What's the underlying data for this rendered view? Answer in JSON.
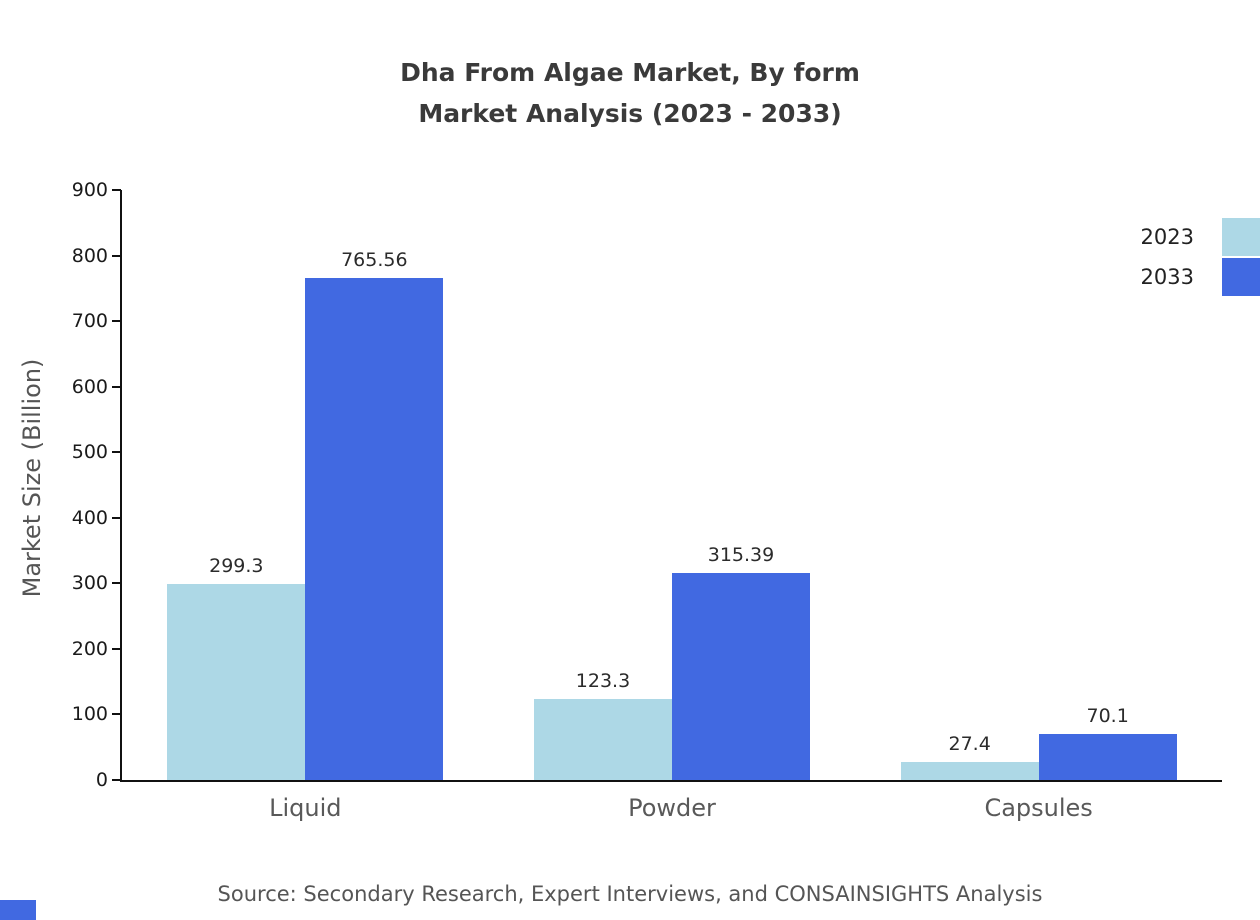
{
  "title": {
    "line1": "Dha From Algae Market, By form",
    "line2": "Market Analysis (2023 - 2033)"
  },
  "chart_data": {
    "type": "bar",
    "categories": [
      "Liquid",
      "Powder",
      "Capsules"
    ],
    "series": [
      {
        "name": "2023",
        "color": "#add8e6",
        "values": [
          299.3,
          123.3,
          27.4
        ]
      },
      {
        "name": "2033",
        "color": "#4169e1",
        "values": [
          765.56,
          315.39,
          70.1
        ]
      }
    ],
    "title": "Dha From Algae Market, By form Market Analysis (2023 - 2033)",
    "xlabel": "",
    "ylabel": "Market Size (Billion)",
    "ylim": [
      0,
      900
    ],
    "ytick_step": 100,
    "grid": false,
    "legend_position": "top-right"
  },
  "source": "Source: Secondary Research, Expert Interviews, and CONSAINSIGHTS Analysis",
  "colors": {
    "accent": "#4169e1",
    "series_2023": "#add8e6",
    "series_2033": "#4169e1"
  }
}
